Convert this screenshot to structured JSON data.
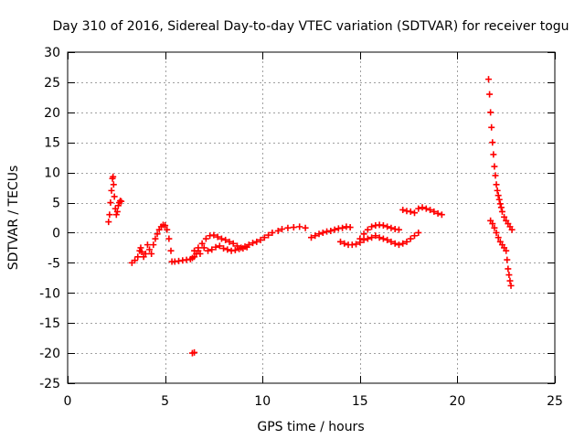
{
  "chart_data": {
    "type": "scatter",
    "title": "Day 310 of 2016, Sidereal Day-to-day VTEC variation (SDTVAR) for receiver togu",
    "xlabel": "GPS time / hours",
    "ylabel": "SDTVAR / TECUs",
    "xlim": [
      0,
      25
    ],
    "ylim": [
      -25,
      30
    ],
    "xticks": [
      0,
      5,
      10,
      15,
      20,
      25
    ],
    "yticks": [
      -25,
      -20,
      -15,
      -10,
      -5,
      0,
      5,
      10,
      15,
      20,
      25,
      30
    ],
    "grid": true,
    "marker": "+",
    "series": [
      {
        "name": "SDTVAR",
        "color": "#ff0000",
        "x": [
          2.1,
          2.15,
          2.2,
          2.25,
          2.3,
          2.33,
          2.36,
          2.4,
          2.45,
          2.5,
          2.55,
          2.6,
          2.65,
          2.7,
          2.75,
          3.3,
          3.45,
          3.6,
          3.7,
          3.75,
          3.8,
          3.9,
          4.0,
          4.1,
          4.2,
          4.3,
          4.4,
          4.5,
          4.6,
          4.7,
          4.8,
          4.9,
          5.0,
          5.1,
          5.2,
          5.3,
          5.35,
          5.5,
          5.7,
          5.9,
          6.1,
          6.3,
          6.4,
          6.5,
          6.6,
          6.7,
          6.8,
          6.4,
          6.5,
          6.5,
          6.7,
          6.9,
          7.1,
          7.3,
          7.5,
          7.7,
          7.9,
          8.1,
          8.3,
          8.5,
          8.7,
          8.9,
          9.1,
          9.3,
          9.5,
          7.0,
          7.2,
          7.4,
          7.6,
          7.8,
          8.0,
          8.2,
          8.4,
          8.6,
          8.8,
          9.0,
          9.2,
          9.7,
          9.9,
          10.1,
          10.3,
          10.5,
          10.8,
          11.0,
          11.3,
          11.6,
          11.9,
          12.2,
          12.5,
          12.7,
          12.9,
          13.1,
          13.3,
          13.5,
          13.7,
          13.9,
          14.1,
          14.3,
          14.5,
          14.0,
          14.2,
          14.4,
          14.6,
          14.8,
          15.0,
          15.2,
          15.4,
          15.6,
          15.0,
          15.2,
          15.4,
          15.6,
          15.8,
          16.0,
          16.2,
          16.4,
          16.6,
          16.8,
          17.0,
          15.8,
          16.0,
          16.2,
          16.4,
          16.6,
          16.8,
          17.0,
          17.2,
          17.4,
          17.6,
          17.8,
          18.0,
          17.2,
          17.4,
          17.6,
          17.8,
          18.0,
          18.2,
          18.4,
          18.6,
          18.8,
          19.0,
          19.2,
          21.6,
          21.65,
          21.7,
          21.75,
          21.8,
          21.85,
          21.9,
          21.95,
          22.0,
          22.05,
          22.1,
          22.15,
          22.2,
          22.25,
          22.3,
          22.4,
          22.5,
          22.6,
          22.7,
          22.8,
          21.7,
          21.8,
          21.9,
          22.0,
          22.1,
          22.2,
          22.3,
          22.4,
          22.5,
          22.55,
          22.6,
          22.65,
          22.7,
          22.75
        ],
        "y": [
          1.8,
          3.0,
          5.0,
          7.0,
          9.0,
          9.3,
          8.0,
          6.0,
          4.0,
          3.0,
          3.5,
          4.5,
          5.0,
          5.3,
          5.2,
          -5.0,
          -4.6,
          -4.0,
          -3.0,
          -2.5,
          -3.2,
          -4.0,
          -3.5,
          -2.0,
          -2.8,
          -3.5,
          -2.0,
          -1.0,
          -0.2,
          0.5,
          1.0,
          1.3,
          1.2,
          0.5,
          -1.0,
          -3.0,
          -4.8,
          -4.8,
          -4.7,
          -4.6,
          -4.5,
          -4.4,
          -4.2,
          -4.0,
          -3.5,
          -3.0,
          -3.5,
          -20.0,
          -19.9,
          -3.0,
          -2.5,
          -1.8,
          -1.0,
          -0.5,
          -0.4,
          -0.7,
          -1.0,
          -1.2,
          -1.5,
          -1.8,
          -2.2,
          -2.5,
          -2.3,
          -2.0,
          -1.7,
          -2.5,
          -3.0,
          -2.8,
          -2.4,
          -2.2,
          -2.6,
          -2.8,
          -3.0,
          -2.9,
          -2.7,
          -2.6,
          -2.4,
          -1.5,
          -1.2,
          -0.8,
          -0.4,
          0.0,
          0.3,
          0.6,
          0.8,
          0.9,
          1.0,
          0.8,
          -0.8,
          -0.5,
          -0.2,
          0.0,
          0.2,
          0.3,
          0.5,
          0.7,
          0.8,
          1.0,
          0.9,
          -1.5,
          -1.8,
          -2.0,
          -2.0,
          -1.9,
          -1.6,
          -1.2,
          -1.0,
          -0.8,
          -1.0,
          -0.2,
          0.5,
          1.0,
          1.2,
          1.3,
          1.2,
          1.0,
          0.8,
          0.6,
          0.5,
          -0.5,
          -0.8,
          -1.0,
          -1.2,
          -1.5,
          -1.8,
          -2.0,
          -1.8,
          -1.5,
          -1.0,
          -0.5,
          0.0,
          3.8,
          3.6,
          3.5,
          3.3,
          4.0,
          4.2,
          4.0,
          3.8,
          3.5,
          3.2,
          3.0,
          25.5,
          23.0,
          20.0,
          17.5,
          15.0,
          13.0,
          11.0,
          9.5,
          8.0,
          7.0,
          6.2,
          5.5,
          4.8,
          4.2,
          3.5,
          2.6,
          2.0,
          1.5,
          1.0,
          0.5,
          2.0,
          1.5,
          0.8,
          0.0,
          -0.8,
          -1.5,
          -2.0,
          -2.5,
          -3.0,
          -4.5,
          -6.0,
          -7.0,
          -8.0,
          -8.8
        ]
      }
    ]
  }
}
